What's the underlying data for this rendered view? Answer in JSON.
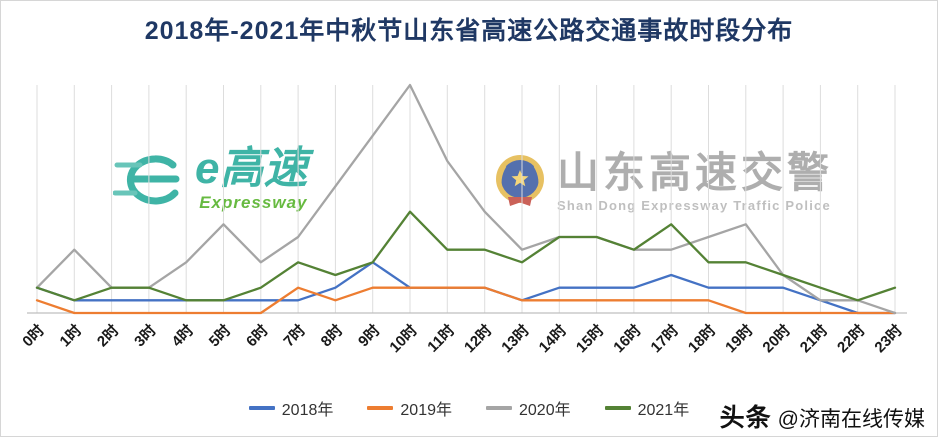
{
  "chart_data": {
    "type": "line",
    "title": "2018年-2021年中秋节山东省高速公路交通事故时段分布",
    "title_color": "#1f3864",
    "categories": [
      "0时",
      "1时",
      "2时",
      "3时",
      "4时",
      "5时",
      "6时",
      "7时",
      "8时",
      "9时",
      "10时",
      "11时",
      "12时",
      "13时",
      "14时",
      "15时",
      "16时",
      "17时",
      "18时",
      "19时",
      "20时",
      "21时",
      "22时",
      "23时"
    ],
    "series": [
      {
        "name": "2018年",
        "color": "#4472c4",
        "values": [
          2,
          1,
          1,
          1,
          1,
          1,
          1,
          1,
          2,
          4,
          2,
          2,
          2,
          1,
          2,
          2,
          2,
          3,
          2,
          2,
          2,
          1,
          0,
          0
        ]
      },
      {
        "name": "2019年",
        "color": "#ed7d31",
        "values": [
          1,
          0,
          0,
          0,
          0,
          0,
          0,
          2,
          1,
          2,
          2,
          2,
          2,
          1,
          1,
          1,
          1,
          1,
          1,
          0,
          0,
          0,
          0,
          0
        ]
      },
      {
        "name": "2020年",
        "color": "#a5a5a5",
        "values": [
          2,
          5,
          2,
          2,
          4,
          7,
          4,
          6,
          10,
          14,
          18,
          12,
          8,
          5,
          6,
          6,
          5,
          5,
          6,
          7,
          3,
          1,
          1,
          0
        ]
      },
      {
        "name": "2021年",
        "color": "#548235",
        "values": [
          2,
          1,
          2,
          2,
          1,
          1,
          2,
          4,
          3,
          4,
          8,
          5,
          5,
          4,
          6,
          6,
          5,
          7,
          4,
          4,
          3,
          2,
          1,
          2
        ]
      }
    ],
    "ylim": [
      0,
      18
    ],
    "xlabel": "",
    "ylabel": "",
    "grid": "vertical",
    "legend_position": "bottom"
  },
  "watermarks": {
    "egaosu": {
      "text": "e高速",
      "sub": "Expressway"
    },
    "police": {
      "main": "山东高速交警",
      "sub": "Shan Dong Expressway Traffic Police"
    }
  },
  "footer": {
    "brand": "头条",
    "handle": "@济南在线传媒"
  }
}
